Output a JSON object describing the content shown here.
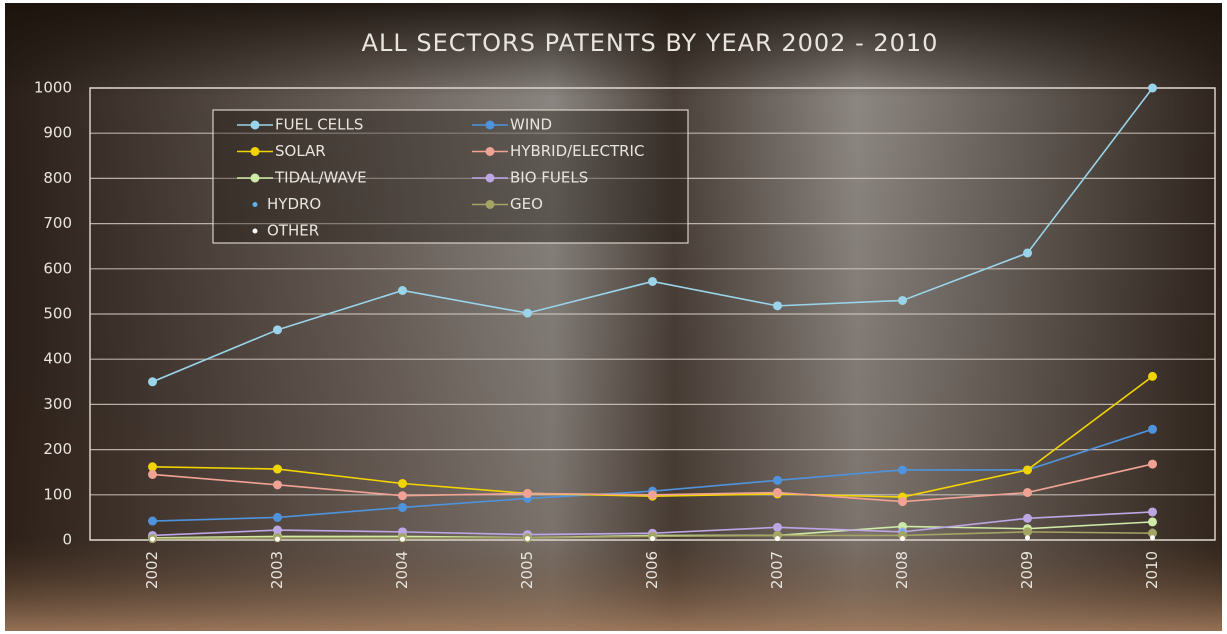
{
  "chart_data": {
    "type": "line",
    "title": "ALL SECTORS PATENTS BY YEAR 2002 - 2010",
    "categories": [
      "2002",
      "2003",
      "2004",
      "2005",
      "2006",
      "2007",
      "2008",
      "2009",
      "2010"
    ],
    "ylim": [
      0,
      1000
    ],
    "yticks": [
      0,
      100,
      200,
      300,
      400,
      500,
      600,
      700,
      800,
      900,
      1000
    ],
    "grid": true,
    "legend": "top-left",
    "series": [
      {
        "name": "FUEL CELLS",
        "color": "#9ad4ea",
        "values": [
          350,
          465,
          552,
          502,
          572,
          518,
          530,
          635,
          1000
        ]
      },
      {
        "name": "WIND",
        "color": "#4f93dc",
        "values": [
          42,
          50,
          72,
          92,
          108,
          132,
          155,
          155,
          245
        ]
      },
      {
        "name": "SOLAR",
        "color": "#f2d400",
        "values": [
          162,
          157,
          125,
          103,
          97,
          102,
          95,
          155,
          362
        ]
      },
      {
        "name": "HYBRID/ELECTRIC",
        "color": "#f0a394",
        "values": [
          145,
          122,
          98,
          103,
          100,
          105,
          85,
          105,
          168
        ]
      },
      {
        "name": "TIDAL/WAVE",
        "color": "#cdeaa6",
        "values": [
          5,
          8,
          8,
          5,
          10,
          10,
          30,
          25,
          40
        ]
      },
      {
        "name": "BIO FUELS",
        "color": "#bca6e4",
        "values": [
          10,
          22,
          18,
          12,
          15,
          28,
          18,
          48,
          62
        ]
      },
      {
        "name": "HYDRO",
        "color": "#5ab2f2",
        "show_line": false,
        "values": [
          8,
          10,
          10,
          8,
          10,
          15,
          20,
          15,
          20
        ]
      },
      {
        "name": "GEO",
        "color": "#a4a464",
        "values": [
          3,
          5,
          5,
          5,
          8,
          10,
          10,
          18,
          15
        ]
      },
      {
        "name": "OTHER",
        "color": "#ffffff",
        "show_line": false,
        "values": [
          2,
          2,
          2,
          3,
          3,
          3,
          3,
          5,
          5
        ]
      }
    ]
  }
}
